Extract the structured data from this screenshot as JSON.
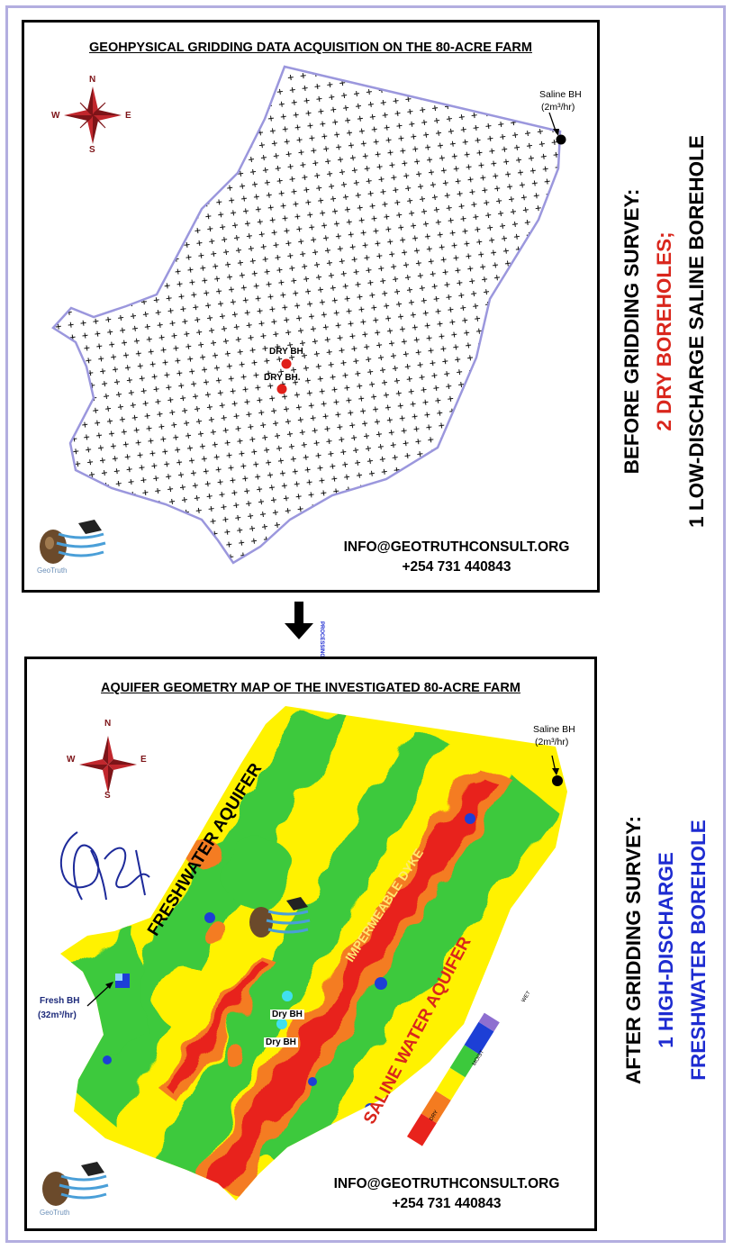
{
  "top_panel": {
    "title": "GEOHPYSICAL GRIDDING DATA ACQUISITION ON THE 80-ACRE FARM",
    "compass": {
      "n": "N",
      "s": "S",
      "e": "E",
      "w": "W"
    },
    "saline_bh": {
      "line1": "Saline BH",
      "line2": "(2m³/hr)"
    },
    "dry_bh_1": "DRY BH",
    "dry_bh_2": "DRY BH.",
    "logo_text": "GeoTruth",
    "email": "INFO@GEOTRUTHCONSULT.ORG",
    "phone": "+254 731 440843"
  },
  "processing_label": "PROCESSING",
  "bottom_panel": {
    "title": "AQUIFER GEOMETRY MAP OF THE INVESTIGATED 80-ACRE FARM",
    "compass": {
      "n": "N",
      "s": "S",
      "e": "E",
      "w": "W"
    },
    "saline_bh": {
      "line1": "Saline BH",
      "line2": "(2m³/hr)"
    },
    "fresh_bh": {
      "line1": "Fresh BH",
      "line2": "(32m³/hr)"
    },
    "dry_bh_1": "Dry BH",
    "dry_bh_2": "Dry BH",
    "zone_freshwater": "FRESHWATER AQUIFER",
    "zone_dyke": "IMPERMEABLE DYKE",
    "zone_saline": "SALINE WATER AQUIFER",
    "legend": {
      "dry": "DRY",
      "moist": "MOIST",
      "wet": "WET"
    },
    "logo_text": "GeoTruth",
    "email": "INFO@GEOTRUTHCONSULT.ORG",
    "phone": "+254 731 440843"
  },
  "side_before": {
    "line1": "BEFORE GRIDDING SURVEY:",
    "line2": "2 DRY BOREHOLES;",
    "line3": "1 LOW-DISCHARGE SALINE BOREHOLE"
  },
  "side_after": {
    "line1": "AFTER GRIDDING SURVEY:",
    "line2": "1 HIGH-DISCHARGE",
    "line3": "FRESHWATER BOREHOLE"
  },
  "colors": {
    "frame": "#b3aee0",
    "boundary": "#9b97dd",
    "dry": "#e8231c",
    "orange": "#f47b20",
    "moist": "#fff200",
    "green": "#3cc93c",
    "wet": "#1d3fd6",
    "red_text": "#d9261c",
    "blue_text": "#1d2bd1"
  }
}
